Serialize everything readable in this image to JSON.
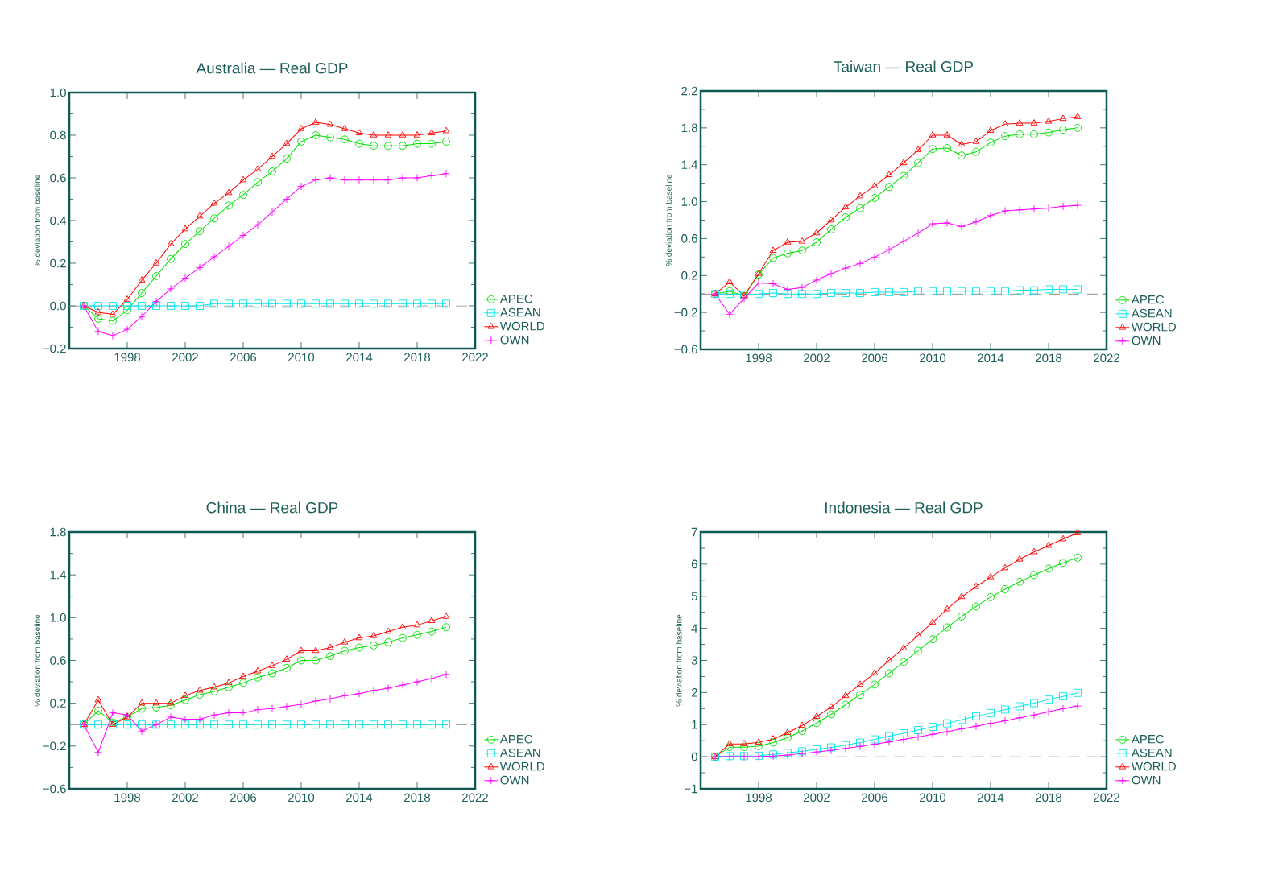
{
  "chart_data": [
    {
      "type": "line",
      "title": "Australia — Real GDP",
      "ylabel": "% deviation from baseline",
      "legend": "right",
      "x": [
        1995,
        1996,
        1997,
        1998,
        1999,
        2000,
        2001,
        2002,
        2003,
        2004,
        2005,
        2006,
        2007,
        2008,
        2009,
        2010,
        2011,
        2012,
        2013,
        2014,
        2015,
        2016,
        2017,
        2018,
        2019,
        2020
      ],
      "xlim": [
        1994,
        2022
      ],
      "xticks": [
        1998,
        2002,
        2006,
        2010,
        2014,
        2018,
        2022
      ],
      "ylim": [
        -0.2,
        1.0
      ],
      "yticks": [
        {
          "value": -0.2,
          "label": "−0.2"
        },
        {
          "value": 0,
          "label": "0.0"
        },
        {
          "value": 0.2,
          "label": "0.2"
        },
        {
          "value": 0.4,
          "label": "0.4"
        },
        {
          "value": 0.6,
          "label": "0.6"
        },
        {
          "value": 0.8,
          "label": "0.8"
        },
        {
          "value": 1.0,
          "label": "1.0"
        }
      ],
      "ref_lines": [
        {
          "axis": "y",
          "value": 0,
          "color": "#888888",
          "line_style": "dashed"
        }
      ],
      "series": [
        {
          "name": "APEC",
          "color": "#00e000",
          "marker": "circle",
          "values": [
            0,
            -0.06,
            -0.07,
            -0.02,
            0.06,
            0.14,
            0.22,
            0.29,
            0.35,
            0.41,
            0.47,
            0.52,
            0.58,
            0.63,
            0.69,
            0.77,
            0.8,
            0.79,
            0.78,
            0.76,
            0.75,
            0.75,
            0.75,
            0.76,
            0.76,
            0.77
          ]
        },
        {
          "name": "ASEAN",
          "color": "#00e8e8",
          "marker": "square",
          "values": [
            0,
            0,
            0,
            0,
            0,
            0,
            0,
            0,
            0,
            0.01,
            0.01,
            0.01,
            0.01,
            0.01,
            0.01,
            0.01,
            0.01,
            0.01,
            0.01,
            0.01,
            0.01,
            0.01,
            0.01,
            0.01,
            0.01,
            0.01
          ]
        },
        {
          "name": "WORLD",
          "color": "#ff0000",
          "marker": "triangle",
          "values": [
            0,
            -0.03,
            -0.04,
            0.03,
            0.12,
            0.2,
            0.29,
            0.36,
            0.42,
            0.48,
            0.53,
            0.59,
            0.64,
            0.7,
            0.76,
            0.83,
            0.86,
            0.85,
            0.83,
            0.81,
            0.8,
            0.8,
            0.8,
            0.8,
            0.81,
            0.82
          ]
        },
        {
          "name": "OWN",
          "color": "#ff00ff",
          "marker": "cross",
          "values": [
            0,
            -0.12,
            -0.14,
            -0.11,
            -0.05,
            0.02,
            0.08,
            0.13,
            0.18,
            0.23,
            0.28,
            0.33,
            0.38,
            0.44,
            0.5,
            0.56,
            0.59,
            0.6,
            0.59,
            0.59,
            0.59,
            0.59,
            0.6,
            0.6,
            0.61,
            0.62
          ]
        }
      ]
    },
    {
      "type": "line",
      "title": "Taiwan — Real GDP",
      "ylabel": "% deviation from baseline",
      "legend": "right",
      "x": [
        1995,
        1996,
        1997,
        1998,
        1999,
        2000,
        2001,
        2002,
        2003,
        2004,
        2005,
        2006,
        2007,
        2008,
        2009,
        2010,
        2011,
        2012,
        2013,
        2014,
        2015,
        2016,
        2017,
        2018,
        2019,
        2020
      ],
      "xlim": [
        1994,
        2022
      ],
      "xticks": [
        1998,
        2002,
        2006,
        2010,
        2014,
        2018,
        2022
      ],
      "ylim": [
        -0.6,
        2.2
      ],
      "yticks": [
        {
          "value": -0.6,
          "label": "−0.6"
        },
        {
          "value": -0.2,
          "label": "−0.2"
        },
        {
          "value": 0.2,
          "label": "0.2"
        },
        {
          "value": 0.6,
          "label": "0.6"
        },
        {
          "value": 1.0,
          "label": "1.0"
        },
        {
          "value": 1.4,
          "label": "1.4"
        },
        {
          "value": 1.8,
          "label": "1.8"
        },
        {
          "value": 2.2,
          "label": "2.2"
        }
      ],
      "ref_lines": [
        {
          "axis": "y",
          "value": 0,
          "color": "#888888",
          "line_style": "dashed"
        }
      ],
      "series": [
        {
          "name": "APEC",
          "color": "#00e000",
          "marker": "circle",
          "values": [
            0,
            0.03,
            -0.02,
            0.21,
            0.39,
            0.44,
            0.47,
            0.56,
            0.7,
            0.83,
            0.93,
            1.04,
            1.16,
            1.28,
            1.42,
            1.57,
            1.58,
            1.5,
            1.54,
            1.64,
            1.71,
            1.73,
            1.73,
            1.75,
            1.78,
            1.8
          ]
        },
        {
          "name": "ASEAN",
          "color": "#00e8e8",
          "marker": "square",
          "values": [
            0,
            0,
            -0.01,
            0,
            0.01,
            0,
            0,
            0,
            0.01,
            0.01,
            0.01,
            0.02,
            0.02,
            0.02,
            0.03,
            0.03,
            0.03,
            0.03,
            0.03,
            0.03,
            0.03,
            0.04,
            0.04,
            0.05,
            0.05,
            0.05
          ]
        },
        {
          "name": "WORLD",
          "color": "#ff0000",
          "marker": "triangle",
          "values": [
            0,
            0.13,
            -0.02,
            0.22,
            0.47,
            0.56,
            0.57,
            0.66,
            0.8,
            0.94,
            1.06,
            1.17,
            1.29,
            1.42,
            1.56,
            1.72,
            1.72,
            1.62,
            1.65,
            1.77,
            1.84,
            1.85,
            1.85,
            1.87,
            1.9,
            1.92
          ]
        },
        {
          "name": "OWN",
          "color": "#ff00ff",
          "marker": "cross",
          "values": [
            0,
            -0.22,
            -0.05,
            0.12,
            0.11,
            0.05,
            0.07,
            0.15,
            0.22,
            0.28,
            0.33,
            0.4,
            0.48,
            0.57,
            0.66,
            0.76,
            0.77,
            0.73,
            0.78,
            0.85,
            0.9,
            0.91,
            0.92,
            0.93,
            0.95,
            0.96
          ]
        }
      ]
    },
    {
      "type": "line",
      "title": "China — Real GDP",
      "ylabel": "% deviation from baseline",
      "legend": "right",
      "x": [
        1995,
        1996,
        1997,
        1998,
        1999,
        2000,
        2001,
        2002,
        2003,
        2004,
        2005,
        2006,
        2007,
        2008,
        2009,
        2010,
        2011,
        2012,
        2013,
        2014,
        2015,
        2016,
        2017,
        2018,
        2019,
        2020
      ],
      "xlim": [
        1994,
        2022
      ],
      "xticks": [
        1998,
        2002,
        2006,
        2010,
        2014,
        2018,
        2022
      ],
      "ylim": [
        -0.6,
        1.8
      ],
      "yticks": [
        {
          "value": -0.6,
          "label": "−0.6"
        },
        {
          "value": -0.2,
          "label": "−0.2"
        },
        {
          "value": 0.2,
          "label": "0.2"
        },
        {
          "value": 0.6,
          "label": "0.6"
        },
        {
          "value": 1.0,
          "label": "1.0"
        },
        {
          "value": 1.4,
          "label": "1.4"
        },
        {
          "value": 1.8,
          "label": "1.8"
        }
      ],
      "ref_lines": [
        {
          "axis": "y",
          "value": 0,
          "color": "#888888",
          "line_style": "dashed"
        }
      ],
      "series": [
        {
          "name": "APEC",
          "color": "#00e000",
          "marker": "circle",
          "values": [
            0,
            0.13,
            0.02,
            0.07,
            0.15,
            0.16,
            0.18,
            0.23,
            0.28,
            0.31,
            0.35,
            0.39,
            0.44,
            0.48,
            0.53,
            0.6,
            0.6,
            0.64,
            0.69,
            0.72,
            0.74,
            0.77,
            0.81,
            0.84,
            0.87,
            0.91
          ]
        },
        {
          "name": "ASEAN",
          "color": "#00e8e8",
          "marker": "square",
          "values": [
            0,
            0,
            0,
            0,
            0,
            0,
            0,
            0,
            0,
            0,
            0,
            0,
            0,
            0,
            0,
            0,
            0,
            0,
            0,
            0,
            0,
            0,
            0,
            0,
            0,
            0
          ]
        },
        {
          "name": "WORLD",
          "color": "#ff0000",
          "marker": "triangle",
          "values": [
            0,
            0.23,
            0,
            0.07,
            0.2,
            0.2,
            0.2,
            0.27,
            0.32,
            0.35,
            0.39,
            0.45,
            0.5,
            0.55,
            0.61,
            0.69,
            0.69,
            0.72,
            0.77,
            0.81,
            0.83,
            0.87,
            0.91,
            0.93,
            0.97,
            1.01
          ]
        },
        {
          "name": "OWN",
          "color": "#ff00ff",
          "marker": "cross",
          "values": [
            0,
            -0.26,
            0.11,
            0.09,
            -0.06,
            0,
            0.07,
            0.05,
            0.05,
            0.09,
            0.11,
            0.11,
            0.14,
            0.15,
            0.17,
            0.19,
            0.22,
            0.24,
            0.27,
            0.29,
            0.32,
            0.34,
            0.37,
            0.4,
            0.43,
            0.47
          ]
        }
      ]
    },
    {
      "type": "line",
      "title": "Indonesia — Real GDP",
      "ylabel": "% deviation from baseline",
      "legend": "right",
      "x": [
        1995,
        1996,
        1997,
        1998,
        1999,
        2000,
        2001,
        2002,
        2003,
        2004,
        2005,
        2006,
        2007,
        2008,
        2009,
        2010,
        2011,
        2012,
        2013,
        2014,
        2015,
        2016,
        2017,
        2018,
        2019,
        2020
      ],
      "xlim": [
        1994,
        2022
      ],
      "xticks": [
        1998,
        2002,
        2006,
        2010,
        2014,
        2018,
        2022
      ],
      "ylim": [
        -1,
        7
      ],
      "yticks": [
        {
          "value": -1,
          "label": "−1"
        },
        0,
        1,
        2,
        3,
        4,
        5,
        6,
        7
      ],
      "ref_lines": [
        {
          "axis": "y",
          "value": 0,
          "color": "#888888",
          "line_style": "dashed"
        }
      ],
      "series": [
        {
          "name": "APEC",
          "color": "#00e000",
          "marker": "circle",
          "values": [
            0,
            0.3,
            0.3,
            0.33,
            0.44,
            0.6,
            0.8,
            1.05,
            1.32,
            1.62,
            1.93,
            2.25,
            2.6,
            2.95,
            3.3,
            3.66,
            4.03,
            4.37,
            4.68,
            4.97,
            5.22,
            5.45,
            5.66,
            5.86,
            6.04,
            6.2
          ]
        },
        {
          "name": "ASEAN",
          "color": "#00e8e8",
          "marker": "square",
          "values": [
            0,
            0.02,
            0.02,
            0.03,
            0.07,
            0.12,
            0.17,
            0.23,
            0.29,
            0.36,
            0.44,
            0.54,
            0.64,
            0.73,
            0.83,
            0.93,
            1.04,
            1.15,
            1.26,
            1.36,
            1.47,
            1.57,
            1.67,
            1.78,
            1.88,
            1.99
          ]
        },
        {
          "name": "WORLD",
          "color": "#ff0000",
          "marker": "triangle",
          "values": [
            0,
            0.4,
            0.4,
            0.45,
            0.55,
            0.75,
            0.97,
            1.25,
            1.55,
            1.9,
            2.25,
            2.6,
            3.0,
            3.38,
            3.78,
            4.18,
            4.6,
            4.98,
            5.3,
            5.6,
            5.88,
            6.15,
            6.38,
            6.58,
            6.78,
            6.97
          ]
        },
        {
          "name": "OWN",
          "color": "#ff00ff",
          "marker": "cross",
          "values": [
            0,
            0,
            0,
            0,
            0.02,
            0.05,
            0.1,
            0.15,
            0.2,
            0.26,
            0.32,
            0.39,
            0.46,
            0.54,
            0.62,
            0.7,
            0.78,
            0.87,
            0.95,
            1.04,
            1.12,
            1.21,
            1.3,
            1.4,
            1.5,
            1.58
          ]
        }
      ]
    }
  ]
}
